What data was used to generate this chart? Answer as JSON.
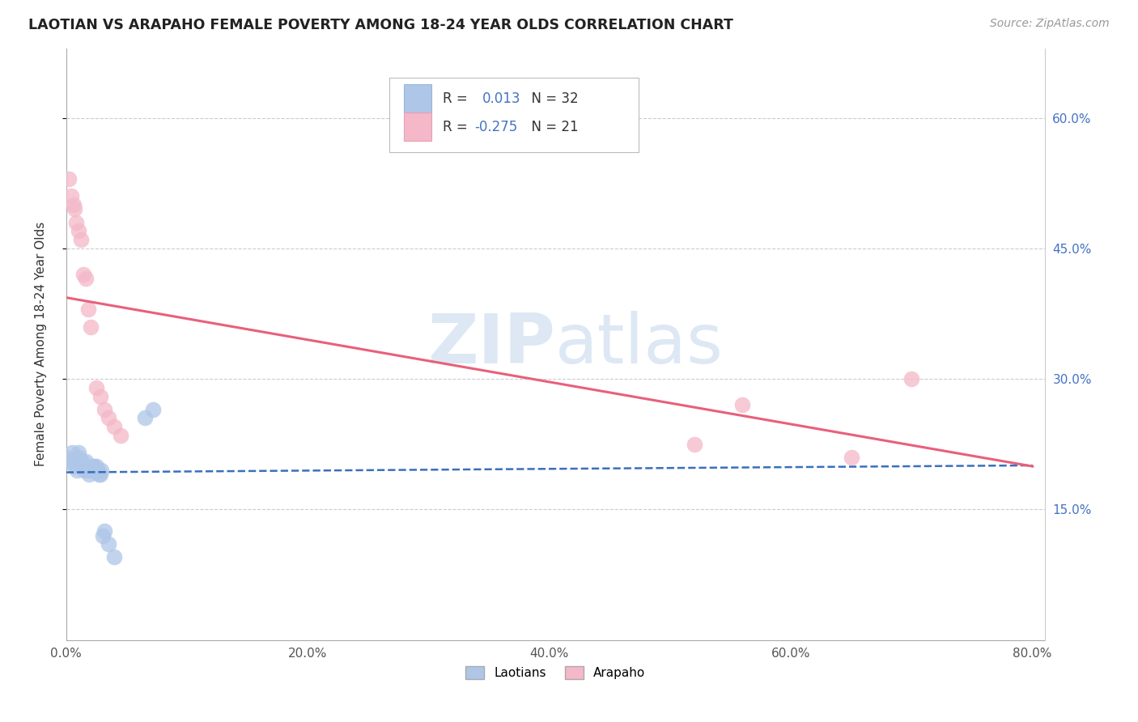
{
  "title": "LAOTIAN VS ARAPAHO FEMALE POVERTY AMONG 18-24 YEAR OLDS CORRELATION CHART",
  "source": "Source: ZipAtlas.com",
  "ylabel": "Female Poverty Among 18-24 Year Olds",
  "laotian_R": "0.013",
  "laotian_N": "32",
  "arapaho_R": "-0.275",
  "arapaho_N": "21",
  "laotian_color": "#aec6e8",
  "arapaho_color": "#f4b8c8",
  "laotian_line_color": "#3a6fbc",
  "arapaho_line_color": "#e8607a",
  "legend_R_color": "#4472c4",
  "legend_text_color": "#333333",
  "watermark_color": "#dde8f4",
  "grid_color": "#cccccc",
  "laotian_x": [
    0.0,
    0.003,
    0.005,
    0.007,
    0.008,
    0.009,
    0.01,
    0.01,
    0.012,
    0.013,
    0.014,
    0.015,
    0.016,
    0.017,
    0.018,
    0.019,
    0.02,
    0.021,
    0.022,
    0.023,
    0.024,
    0.025,
    0.026,
    0.027,
    0.028,
    0.029,
    0.03,
    0.032,
    0.035,
    0.04,
    0.065,
    0.072
  ],
  "laotian_y": [
    0.21,
    0.205,
    0.215,
    0.2,
    0.205,
    0.195,
    0.21,
    0.215,
    0.2,
    0.205,
    0.2,
    0.195,
    0.205,
    0.2,
    0.195,
    0.19,
    0.195,
    0.195,
    0.2,
    0.2,
    0.195,
    0.2,
    0.195,
    0.19,
    0.19,
    0.195,
    0.12,
    0.125,
    0.11,
    0.095,
    0.255,
    0.265
  ],
  "arapaho_x": [
    0.002,
    0.004,
    0.006,
    0.007,
    0.008,
    0.01,
    0.012,
    0.014,
    0.016,
    0.018,
    0.02,
    0.025,
    0.028,
    0.032,
    0.035,
    0.04,
    0.045,
    0.52,
    0.56,
    0.65,
    0.7
  ],
  "arapaho_y": [
    0.53,
    0.51,
    0.5,
    0.495,
    0.48,
    0.47,
    0.46,
    0.42,
    0.415,
    0.38,
    0.36,
    0.29,
    0.28,
    0.265,
    0.255,
    0.245,
    0.235,
    0.225,
    0.27,
    0.21,
    0.3
  ],
  "xlim": [
    0.0,
    0.81
  ],
  "ylim": [
    0.0,
    0.68
  ],
  "xticks": [
    0.0,
    0.2,
    0.4,
    0.6,
    0.8
  ],
  "yticks_right": [
    0.15,
    0.3,
    0.45,
    0.6
  ],
  "ytick_labels_right": [
    "15.0%",
    "30.0%",
    "45.0%",
    "60.0%"
  ]
}
